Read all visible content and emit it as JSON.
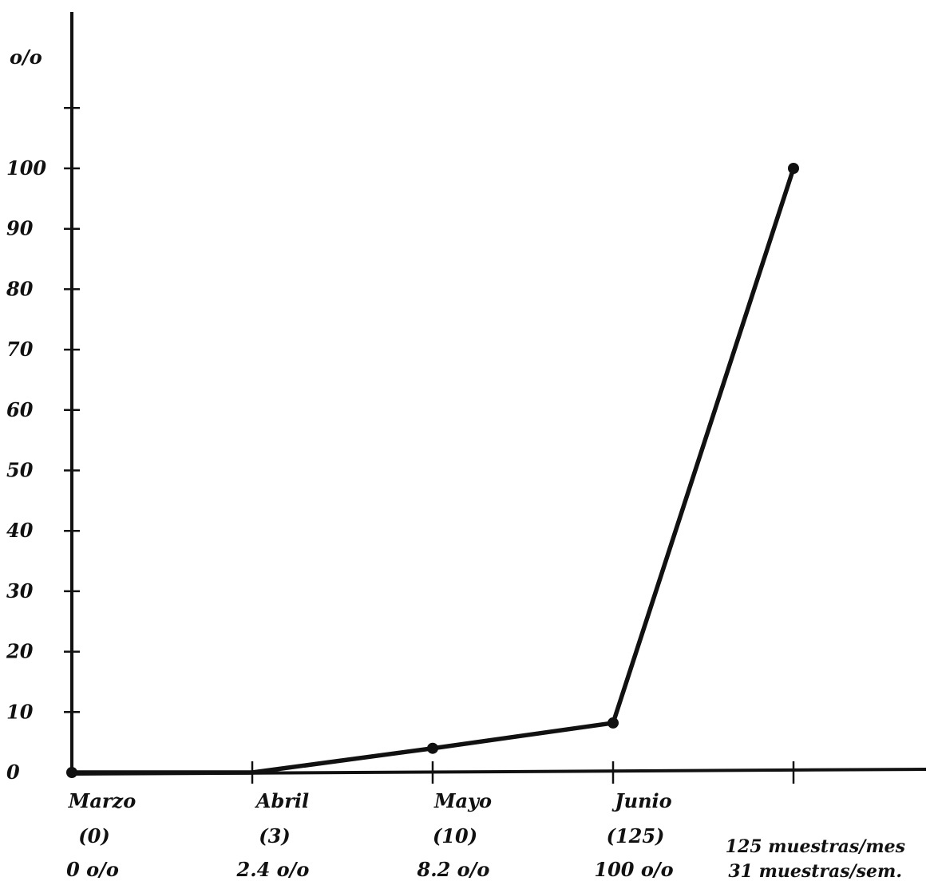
{
  "chart_data": {
    "type": "line",
    "y_unit_label": "o/o",
    "y_ticks": [
      0,
      10,
      20,
      30,
      40,
      50,
      60,
      70,
      80,
      90,
      100
    ],
    "ylim": [
      0,
      120
    ],
    "grid": false,
    "categories": [
      "Marzo",
      "Abril",
      "Mayo",
      "Junio",
      ""
    ],
    "category_counts": [
      "(0)",
      "(3)",
      "(10)",
      "(125)",
      ""
    ],
    "category_percents": [
      "0 o/o",
      "2.4 o/o",
      "8.2 o/o",
      "100 o/o",
      ""
    ],
    "series": [
      {
        "x_index": [
          0,
          1,
          2,
          3,
          4
        ],
        "values": [
          0,
          0,
          4,
          8.2,
          100
        ],
        "markers": [
          true,
          false,
          true,
          true,
          true
        ]
      }
    ],
    "notes": [
      "125 muestras/mes",
      "31 muestras/sem."
    ]
  }
}
